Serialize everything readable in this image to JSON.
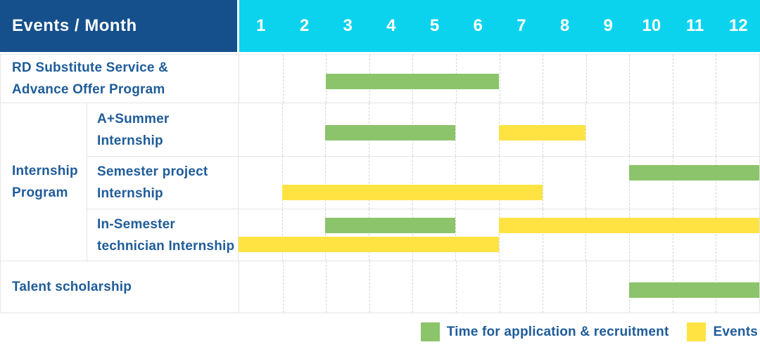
{
  "header": {
    "title": "Events / Month",
    "months": [
      "1",
      "2",
      "3",
      "4",
      "5",
      "6",
      "7",
      "8",
      "9",
      "10",
      "11",
      "12"
    ]
  },
  "colors": {
    "navy": "#15508c",
    "cyan": "#0bd3ee",
    "green": "#8bc46a",
    "yellow": "#ffe343",
    "blue": "#1f5c99",
    "grid": "#e4e4e4",
    "header_text": "#ffffff"
  },
  "chart_data": {
    "type": "gantt",
    "unit": "month",
    "x_range": [
      1,
      12
    ],
    "x_ticks": [
      "1",
      "2",
      "3",
      "4",
      "5",
      "6",
      "7",
      "8",
      "9",
      "10",
      "11",
      "12"
    ],
    "group_label": "Internship Program",
    "group_label_lines": [
      "Internship",
      "Program"
    ],
    "legend": [
      {
        "key": "application",
        "label": "Time for application & recruitment",
        "color": "#8bc46a"
      },
      {
        "key": "events",
        "label": "Events",
        "color": "#ffe343"
      }
    ],
    "rows": [
      {
        "id": "rd-substitute-service",
        "label": "RD Substitute Service & Advance Offer Program",
        "label_lines": [
          "RD Substitute Service &",
          "Advance Offer Program"
        ],
        "group": null,
        "bars": [
          {
            "type": "application",
            "start_month": 3,
            "end_month": 6,
            "band": "center"
          }
        ]
      },
      {
        "id": "a-plus-summer-internship",
        "label": "A+Summer Internship",
        "label_lines": [
          "A+Summer",
          "Internship"
        ],
        "group": "Internship Program",
        "bars": [
          {
            "type": "application",
            "start_month": 3,
            "end_month": 5,
            "band": "center"
          },
          {
            "type": "events",
            "start_month": 7,
            "end_month": 8,
            "band": "center"
          }
        ]
      },
      {
        "id": "semester-project-internship",
        "label": "Semester project Internship",
        "label_lines": [
          "Semester project",
          "Internship"
        ],
        "group": "Internship Program",
        "bars": [
          {
            "type": "application",
            "start_month": 10,
            "end_month": 12,
            "band": "upper"
          },
          {
            "type": "events",
            "start_month": 2,
            "end_month": 7,
            "band": "lower"
          }
        ]
      },
      {
        "id": "in-semester-technician-internship",
        "label": "In-Semester technician Internship",
        "label_lines": [
          "In-Semester",
          "technician Internship"
        ],
        "group": "Internship Program",
        "bars": [
          {
            "type": "application",
            "start_month": 3,
            "end_month": 5,
            "band": "upper"
          },
          {
            "type": "events",
            "start_month": 7,
            "end_month": 12,
            "band": "upper"
          },
          {
            "type": "events",
            "start_month": 1,
            "end_month": 6,
            "band": "lower"
          }
        ]
      },
      {
        "id": "talent-scholarship",
        "label": "Talent scholarship",
        "label_lines": [
          "Talent scholarship"
        ],
        "group": null,
        "bars": [
          {
            "type": "application",
            "start_month": 10,
            "end_month": 12,
            "band": "center"
          }
        ]
      }
    ]
  }
}
